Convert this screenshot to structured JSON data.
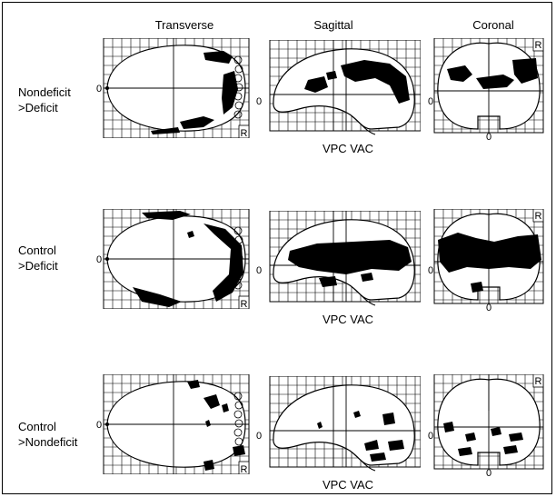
{
  "columns": [
    "Transverse",
    "Sagittal",
    "Coronal"
  ],
  "rows": [
    {
      "label_line1": "Nondeficit",
      "label_line2": ">Deficit",
      "caption": "VPC VAC"
    },
    {
      "label_line1": "Control",
      "label_line2": ">Deficit",
      "caption": "VPC VAC"
    },
    {
      "label_line1": "Control",
      "label_line2": ">Nondeficit",
      "caption": "VPC VAC"
    }
  ],
  "axis_marks": {
    "zero": "0",
    "right": "R"
  },
  "colors": {
    "ink": "#000000",
    "background": "#ffffff",
    "grid": "#000000"
  }
}
